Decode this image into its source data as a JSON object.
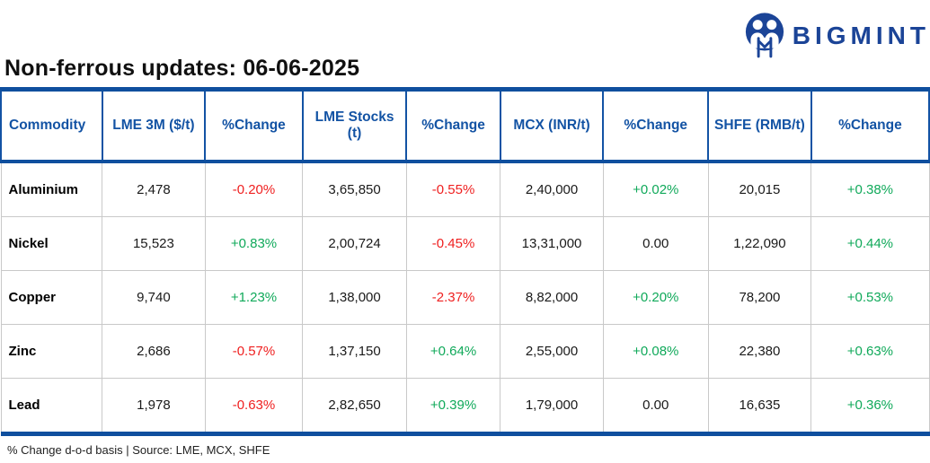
{
  "brand": {
    "name": "BIGMINT",
    "logo_color": "#1b4497"
  },
  "header": {
    "title": "Non-ferrous updates: 06-06-2025"
  },
  "footnote": "% Change d-o-d basis | Source: LME, MCX, SHFE",
  "colors": {
    "header_blue": "#1353a4",
    "thick_border_blue": "#0f4f9e",
    "body_grid_gray": "#c9c9c9",
    "positive_green": "#10a95a",
    "negative_red": "#ef2020",
    "neutral_black": "#1a1a1a"
  },
  "chart_data": {
    "type": "table",
    "title": "Non-ferrous updates: 06-06-2025",
    "columns": [
      "Commodity",
      "LME 3M ($/t)",
      "%Change",
      "LME Stocks (t)",
      "%Change",
      "MCX (INR/t)",
      "%Change",
      "SHFE (RMB/t)",
      "%Change"
    ],
    "rows": [
      [
        "Aluminium",
        "2,478",
        "-0.20%",
        "3,65,850",
        "-0.55%",
        "2,40,000",
        "+0.02%",
        "20,015",
        "+0.38%"
      ],
      [
        "Nickel",
        "15,523",
        "+0.83%",
        "2,00,724",
        "-0.45%",
        "13,31,000",
        "0.00",
        "1,22,090",
        "+0.44%"
      ],
      [
        "Copper",
        "9,740",
        "+1.23%",
        "1,38,000",
        "-2.37%",
        "8,82,000",
        "+0.20%",
        "78,200",
        "+0.53%"
      ],
      [
        "Zinc",
        "2,686",
        "-0.57%",
        "1,37,150",
        "+0.64%",
        "2,55,000",
        "+0.08%",
        "22,380",
        "+0.63%"
      ],
      [
        "Lead",
        "1,978",
        "-0.63%",
        "2,82,650",
        "+0.39%",
        "1,79,000",
        "0.00",
        "16,635",
        "+0.36%"
      ]
    ],
    "footnote": "% Change d-o-d basis | Source: LME, MCX, SHFE"
  }
}
